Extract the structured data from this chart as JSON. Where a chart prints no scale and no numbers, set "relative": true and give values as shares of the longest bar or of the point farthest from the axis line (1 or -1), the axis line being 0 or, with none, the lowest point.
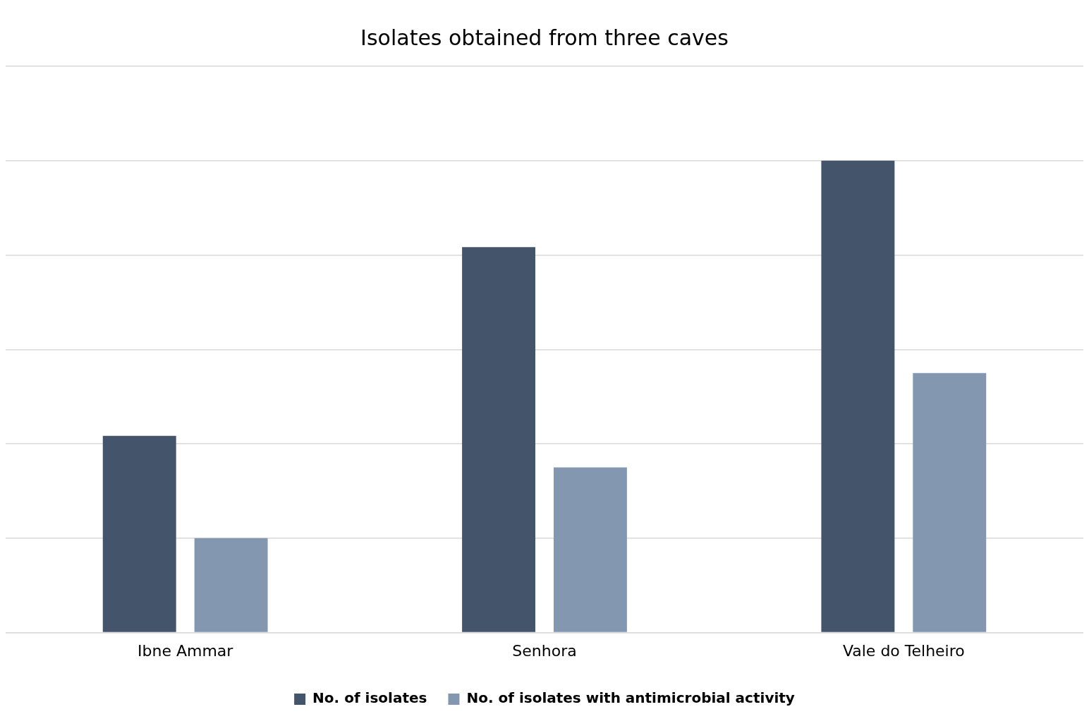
{
  "chart_data": {
    "type": "bar",
    "title": "Isolates obtained from three caves",
    "relative": true,
    "categories": [
      "Ibne Ammar",
      "Senhora",
      "Vale do Telheiro"
    ],
    "series": [
      {
        "name": "No. of isolates",
        "color": "#44546a",
        "values": [
          0.417,
          0.817,
          1
        ]
      },
      {
        "name": "No. of isolates with antimicrobial activity",
        "color": "#8497b0",
        "values": [
          0.2,
          0.35,
          0.55
        ]
      }
    ],
    "grid": "y",
    "legend": "bottom"
  }
}
